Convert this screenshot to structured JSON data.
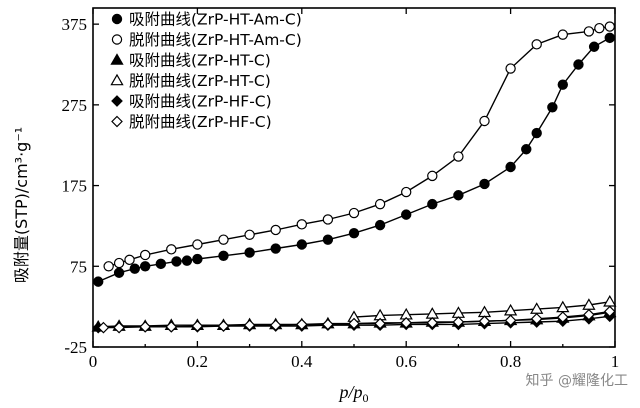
{
  "chart_data": {
    "type": "line",
    "xlabel": "p/p0",
    "ylabel": "吸附量(STP)/cm³·g⁻¹",
    "xlim": [
      0,
      1
    ],
    "ylim": [
      -25,
      395
    ],
    "xticks": [
      0,
      0.2,
      0.4,
      0.6,
      0.8,
      1
    ],
    "xtick_labels": [
      "0",
      "0.2",
      "0.4",
      "0.6",
      "0.8",
      "1"
    ],
    "yticks": [
      -25,
      75,
      175,
      275,
      375
    ],
    "ytick_labels": [
      "-25",
      "75",
      "175",
      "275",
      "375"
    ],
    "legend_position": "top-left",
    "series": [
      {
        "name": "吸附曲线(ZrP-HT-Am-C)",
        "marker": "circle-filled",
        "x": [
          0.01,
          0.05,
          0.08,
          0.1,
          0.13,
          0.16,
          0.18,
          0.2,
          0.25,
          0.3,
          0.35,
          0.4,
          0.45,
          0.5,
          0.55,
          0.6,
          0.65,
          0.7,
          0.75,
          0.8,
          0.83,
          0.85,
          0.88,
          0.9,
          0.93,
          0.96,
          0.99
        ],
        "y": [
          56,
          67,
          72,
          75,
          78,
          81,
          82,
          84,
          88,
          92,
          97,
          102,
          108,
          116,
          126,
          139,
          152,
          163,
          177,
          198,
          220,
          240,
          272,
          300,
          325,
          347,
          358
        ]
      },
      {
        "name": "脱附曲线(ZrP-HT-Am-C)",
        "marker": "circle-open",
        "x": [
          0.99,
          0.97,
          0.95,
          0.9,
          0.85,
          0.8,
          0.75,
          0.7,
          0.65,
          0.6,
          0.55,
          0.5,
          0.45,
          0.4,
          0.35,
          0.3,
          0.25,
          0.2,
          0.15,
          0.1,
          0.07,
          0.05,
          0.03
        ],
        "y": [
          372,
          370,
          366,
          362,
          350,
          320,
          255,
          211,
          187,
          167,
          152,
          141,
          133,
          127,
          120,
          114,
          108,
          102,
          96,
          89,
          83,
          79,
          75
        ]
      },
      {
        "name": "吸附曲线(ZrP-HT-C)",
        "marker": "triangle-filled",
        "x": [
          0.01,
          0.05,
          0.1,
          0.15,
          0.2,
          0.25,
          0.3,
          0.35,
          0.4,
          0.45,
          0.5,
          0.55,
          0.6,
          0.65,
          0.7,
          0.75,
          0.8,
          0.85,
          0.9,
          0.95,
          0.99
        ],
        "y": [
          0,
          1,
          1,
          2,
          2,
          2,
          3,
          3,
          3,
          4,
          4,
          5,
          5,
          6,
          6,
          7,
          8,
          9,
          11,
          14,
          18
        ]
      },
      {
        "name": "脱附曲线(ZrP-HT-C)",
        "marker": "triangle-open",
        "x": [
          0.99,
          0.95,
          0.9,
          0.85,
          0.8,
          0.75,
          0.7,
          0.65,
          0.6,
          0.55,
          0.5
        ],
        "y": [
          31,
          27,
          24,
          22,
          20,
          18,
          17,
          16,
          15,
          14,
          12
        ]
      },
      {
        "name": "吸附曲线(ZrP-HF-C)",
        "marker": "diamond-filled",
        "x": [
          0.01,
          0.05,
          0.1,
          0.15,
          0.2,
          0.25,
          0.3,
          0.35,
          0.4,
          0.45,
          0.5,
          0.55,
          0.6,
          0.65,
          0.7,
          0.75,
          0.8,
          0.85,
          0.9,
          0.95,
          0.99
        ],
        "y": [
          -1,
          0,
          0,
          0,
          0,
          1,
          1,
          1,
          1,
          2,
          2,
          2,
          3,
          3,
          3,
          4,
          5,
          6,
          7,
          10,
          13
        ]
      },
      {
        "name": "脱附曲线(ZrP-HF-C)",
        "marker": "diamond-open",
        "x": [
          0.99,
          0.95,
          0.9,
          0.85,
          0.8,
          0.75,
          0.7,
          0.65,
          0.6,
          0.55,
          0.5,
          0.45,
          0.4,
          0.35,
          0.3,
          0.25,
          0.2,
          0.15,
          0.1,
          0.05,
          0.02
        ],
        "y": [
          19,
          15,
          12,
          10,
          8,
          7,
          6,
          5,
          5,
          4,
          4,
          3,
          3,
          2,
          2,
          1,
          1,
          0,
          0,
          -1,
          -1
        ]
      }
    ]
  },
  "watermark": "知乎 @耀隆化工"
}
